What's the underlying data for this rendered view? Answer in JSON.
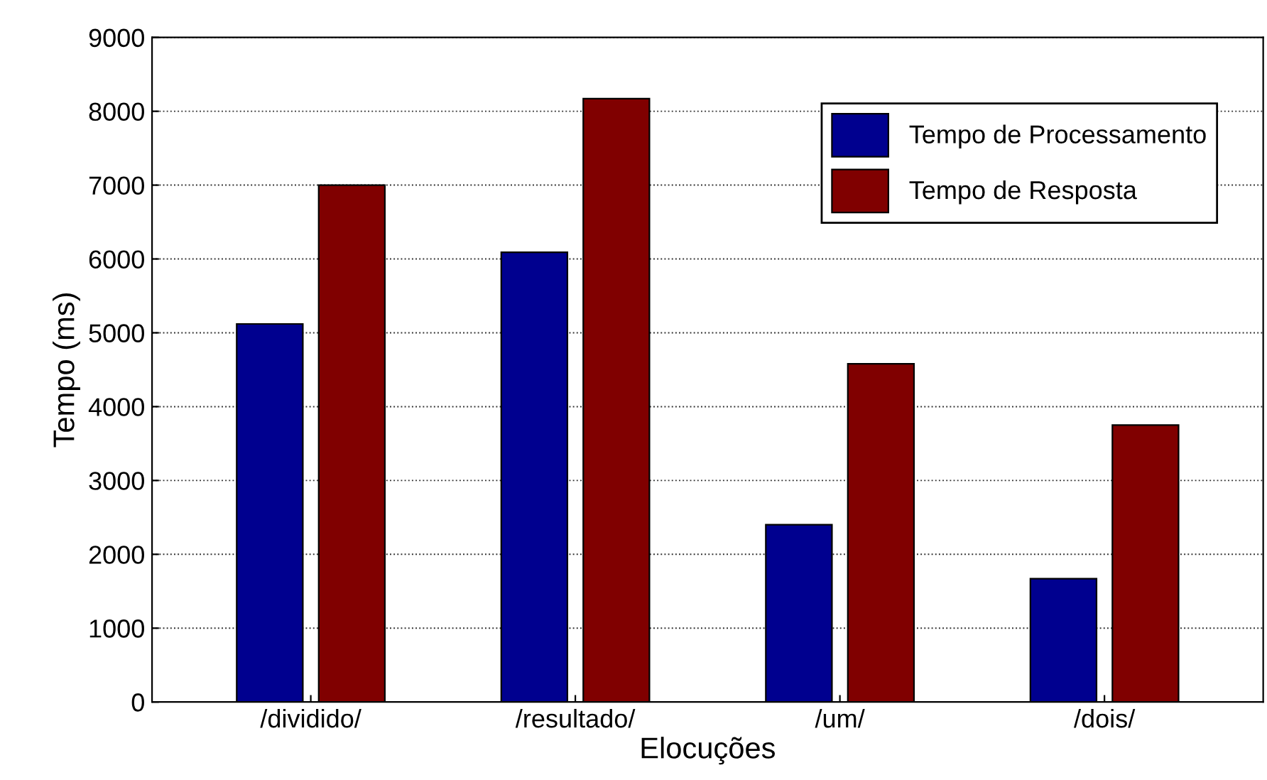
{
  "chart_data": {
    "type": "bar",
    "xlabel": "Elocuções",
    "ylabel": "Tempo (ms)",
    "categories": [
      "/dividido/",
      "/resultado/",
      "/um/",
      "/dois/"
    ],
    "series": [
      {
        "name": "Tempo de Processamento",
        "color": "#00008f",
        "values": [
          5120,
          6090,
          2400,
          1670
        ]
      },
      {
        "name": "Tempo de Resposta",
        "color": "#800000",
        "values": [
          7000,
          8170,
          4580,
          3750
        ]
      }
    ],
    "ylim": [
      0,
      9000
    ],
    "yticks": [
      0,
      1000,
      2000,
      3000,
      4000,
      5000,
      6000,
      7000,
      8000,
      9000
    ],
    "grid": "y",
    "legend": "top right"
  }
}
